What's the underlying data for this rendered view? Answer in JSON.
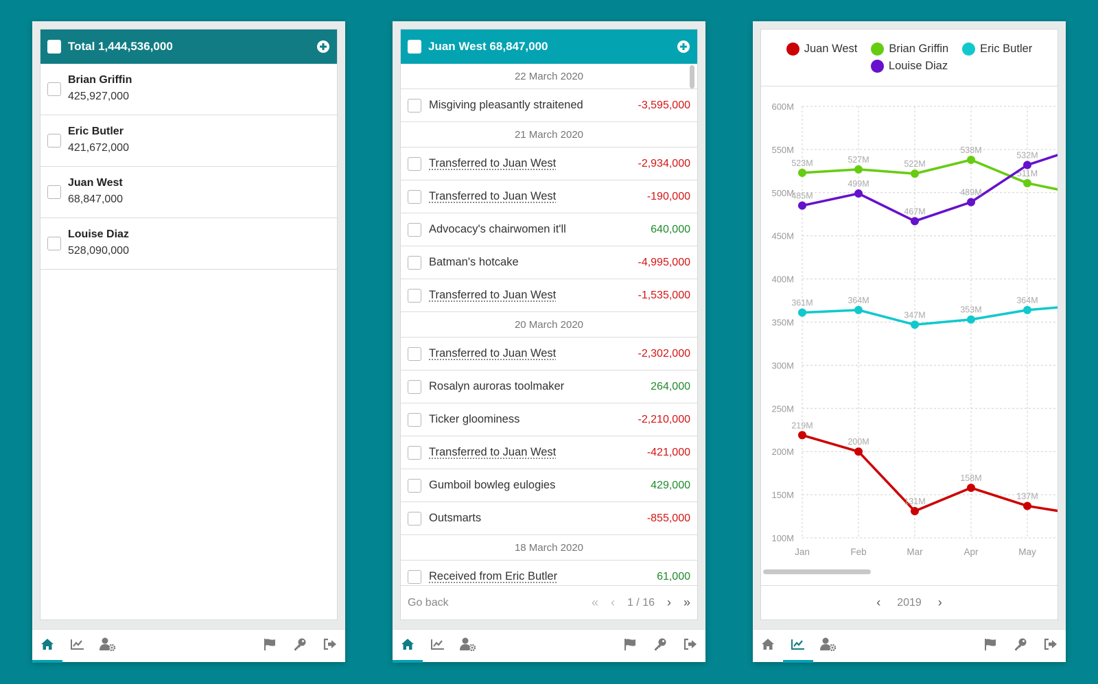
{
  "accounts_panel": {
    "header_label": "Total 1,444,536,000",
    "accounts": [
      {
        "name": "Brian Griffin",
        "balance": "425,927,000"
      },
      {
        "name": "Eric Butler",
        "balance": "421,672,000"
      },
      {
        "name": "Juan West",
        "balance": "68,847,000"
      },
      {
        "name": "Louise Diaz",
        "balance": "528,090,000"
      }
    ]
  },
  "transactions_panel": {
    "header_label": "Juan West 68,847,000",
    "groups": [
      {
        "date": "22 March 2020",
        "items": [
          {
            "desc": "Misgiving pleasantly straitened",
            "amount": "-3,595,000",
            "kind": "neg",
            "link": false
          }
        ]
      },
      {
        "date": "21 March 2020",
        "items": [
          {
            "desc": "Transferred to Juan West",
            "amount": "-2,934,000",
            "kind": "neg",
            "link": true
          },
          {
            "desc": "Transferred to Juan West",
            "amount": "-190,000",
            "kind": "neg",
            "link": true
          },
          {
            "desc": "Advocacy's chairwomen it'll",
            "amount": "640,000",
            "kind": "pos",
            "link": false
          },
          {
            "desc": "Batman's hotcake",
            "amount": "-4,995,000",
            "kind": "neg",
            "link": false
          },
          {
            "desc": "Transferred to Juan West",
            "amount": "-1,535,000",
            "kind": "neg",
            "link": true
          }
        ]
      },
      {
        "date": "20 March 2020",
        "items": [
          {
            "desc": "Transferred to Juan West",
            "amount": "-2,302,000",
            "kind": "neg",
            "link": true
          },
          {
            "desc": "Rosalyn auroras toolmaker",
            "amount": "264,000",
            "kind": "pos",
            "link": false
          },
          {
            "desc": "Ticker gloominess",
            "amount": "-2,210,000",
            "kind": "neg",
            "link": false
          },
          {
            "desc": "Transferred to Juan West",
            "amount": "-421,000",
            "kind": "neg",
            "link": true
          },
          {
            "desc": "Gumboil bowleg eulogies",
            "amount": "429,000",
            "kind": "pos",
            "link": false
          },
          {
            "desc": "Outsmarts",
            "amount": "-855,000",
            "kind": "neg",
            "link": false
          }
        ]
      },
      {
        "date": "18 March 2020",
        "items": [
          {
            "desc": "Received from Eric Butler",
            "amount": "61,000",
            "kind": "pos",
            "link": true
          }
        ]
      }
    ],
    "footer": {
      "go_back": "Go back",
      "page": "1 / 16"
    }
  },
  "chart_panel": {
    "year": "2019"
  },
  "nav_icons": [
    "home-icon",
    "chart-icon",
    "user-settings-icon",
    "flag-icon",
    "key-icon",
    "logout-icon"
  ],
  "colors": {
    "teal_dark": "#117c84",
    "teal": "#03a3b2",
    "negative": "#d41414",
    "positive": "#1f8a2b"
  },
  "chart_data": {
    "type": "line",
    "categories": [
      "Jan",
      "Feb",
      "Mar",
      "Apr",
      "May"
    ],
    "ylim": [
      100,
      600
    ],
    "yticks": [
      "100M",
      "150M",
      "200M",
      "250M",
      "300M",
      "350M",
      "400M",
      "450M",
      "500M",
      "550M",
      "600M"
    ],
    "grid": true,
    "legend_position": "top",
    "series": [
      {
        "name": "Juan West",
        "color": "#cc0000",
        "values": [
          219,
          200,
          131,
          158,
          137
        ],
        "labels": [
          "219M",
          "200M",
          "131M",
          "158M",
          "137M"
        ]
      },
      {
        "name": "Brian Griffin",
        "color": "#66cc11",
        "values": [
          523,
          527,
          522,
          538,
          511
        ],
        "labels": [
          "523M",
          "527M",
          "522M",
          "538M",
          "511M"
        ]
      },
      {
        "name": "Eric Butler",
        "color": "#11c9cc",
        "values": [
          361,
          364,
          347,
          353,
          364
        ],
        "labels": [
          "361M",
          "364M",
          "347M",
          "353M",
          "364M"
        ]
      },
      {
        "name": "Louise Diaz",
        "color": "#6611cc",
        "values": [
          485,
          499,
          467,
          489,
          532
        ],
        "labels": [
          "485M",
          "499M",
          "467M",
          "489M",
          "532M"
        ]
      }
    ]
  }
}
